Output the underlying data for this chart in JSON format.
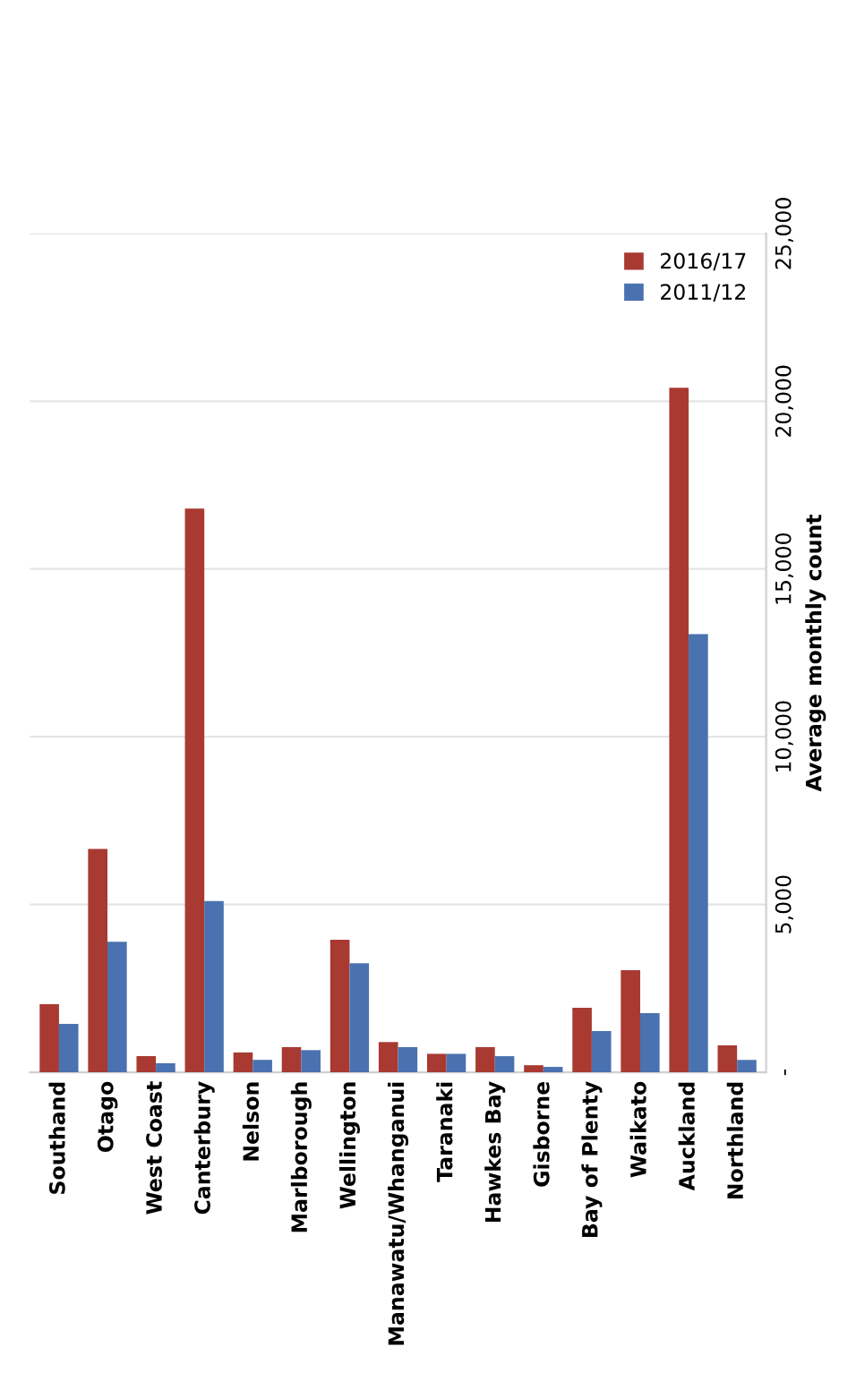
{
  "chart_data": {
    "type": "bar",
    "categories": [
      "Southand",
      "Otago",
      "West Coast",
      "Canterbury",
      "Nelson",
      "Marlborough",
      "Wellington",
      "Manawatu/Whanganui",
      "Taranaki",
      "Hawkes Bay",
      "Gisborne",
      "Bay of Plenty",
      "Waikato",
      "Auckland",
      "Northland"
    ],
    "series": [
      {
        "name": "2016/17",
        "color": "#a83a32",
        "values": [
          2030,
          6660,
          480,
          16800,
          590,
          750,
          3950,
          900,
          550,
          750,
          210,
          1920,
          3040,
          20400,
          800
        ]
      },
      {
        "name": "2011/12",
        "color": "#4a72b0",
        "values": [
          1440,
          3890,
          270,
          5100,
          370,
          660,
          3250,
          750,
          550,
          480,
          160,
          1230,
          1760,
          13060,
          370
        ]
      }
    ],
    "ylabel": "Average monthly count",
    "ylim": [
      0,
      25000
    ],
    "yticks": [
      {
        "value": 0,
        "label": "-"
      },
      {
        "value": 5000,
        "label": "5,000"
      },
      {
        "value": 10000,
        "label": "10,000"
      },
      {
        "value": 15000,
        "label": "15,000"
      },
      {
        "value": 20000,
        "label": "20,000"
      },
      {
        "value": 25000,
        "label": "25,000"
      }
    ],
    "grid": "y",
    "legend": "top right"
  }
}
